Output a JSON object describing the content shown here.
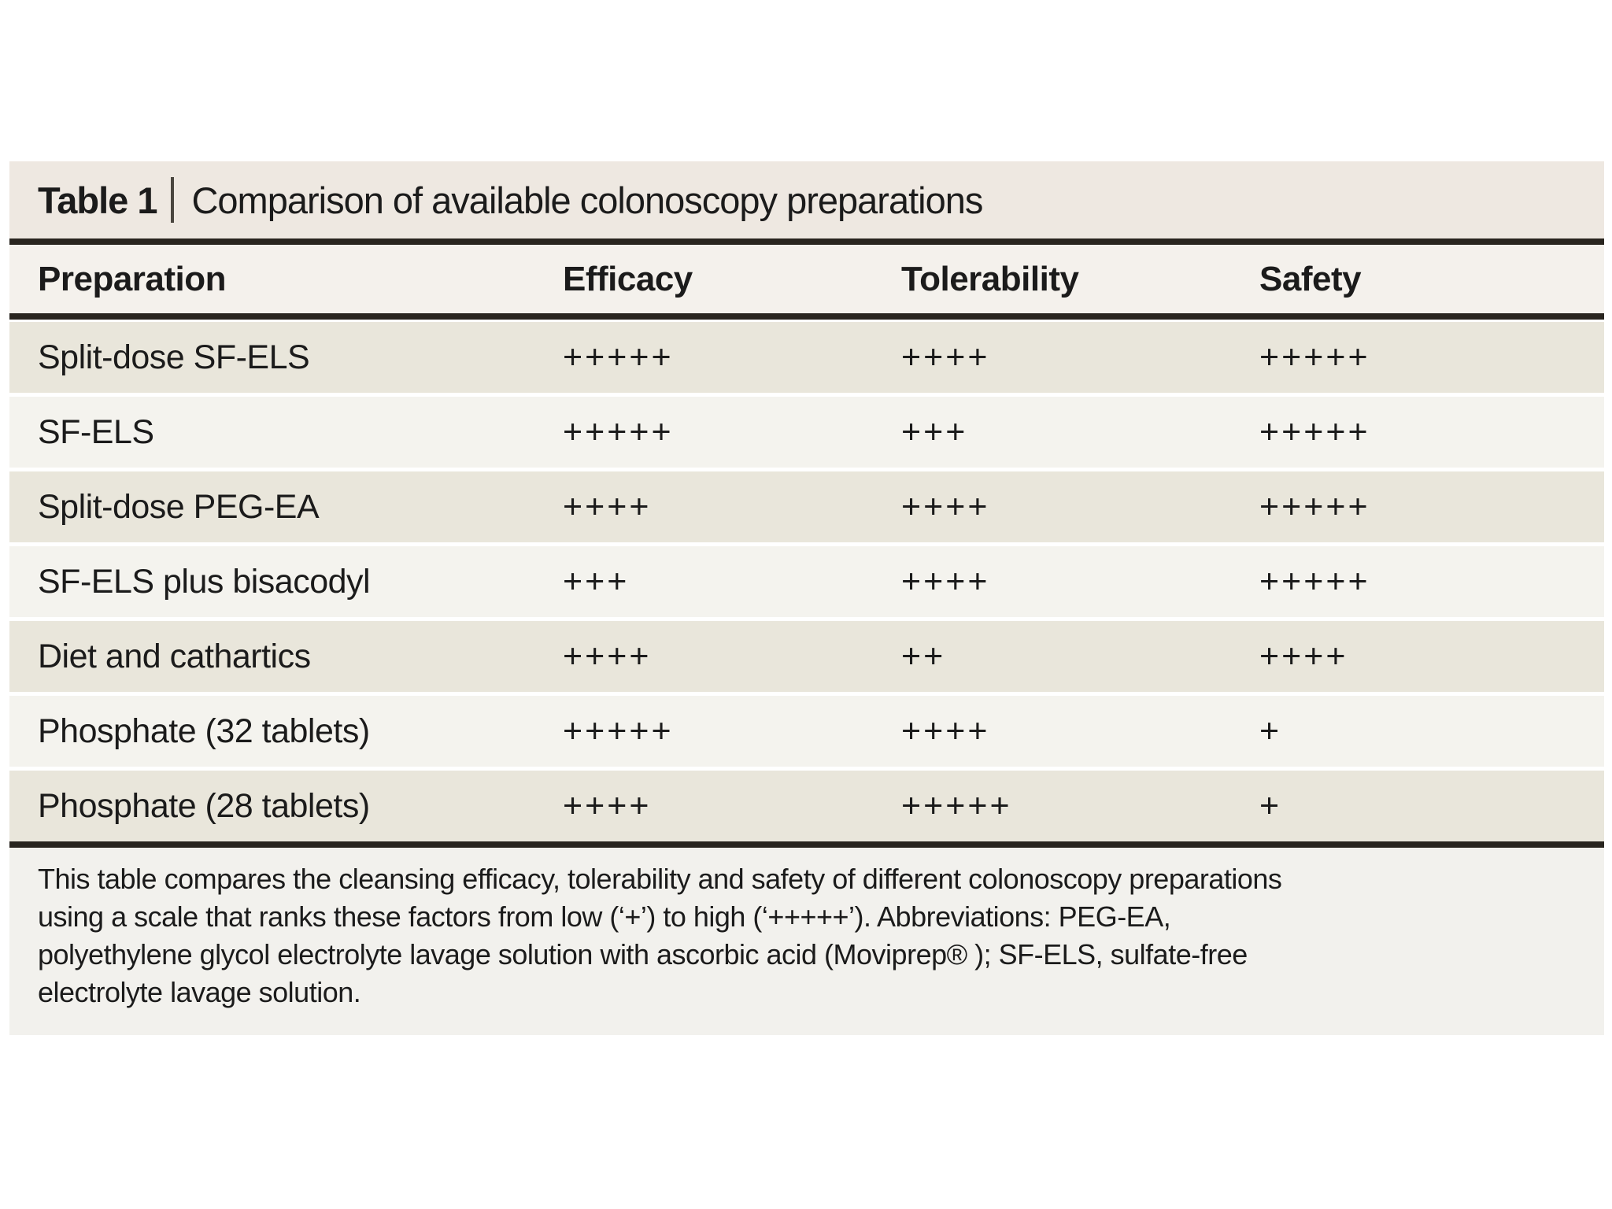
{
  "table": {
    "title": {
      "label": "Table 1",
      "separator": "|",
      "text": "Comparison of available colonoscopy preparations"
    },
    "columns": [
      "Preparation",
      "Efficacy",
      "Tolerability",
      "Safety"
    ],
    "rows": [
      {
        "preparation": "Split-dose SF-ELS",
        "efficacy": "+++++",
        "tolerability": "++++",
        "safety": "+++++"
      },
      {
        "preparation": "SF-ELS",
        "efficacy": "+++++",
        "tolerability": "+++",
        "safety": "+++++"
      },
      {
        "preparation": "Split-dose PEG-EA",
        "efficacy": "++++",
        "tolerability": "++++",
        "safety": "+++++"
      },
      {
        "preparation": "SF-ELS plus bisacodyl",
        "efficacy": "+++",
        "tolerability": "++++",
        "safety": "+++++"
      },
      {
        "preparation": "Diet and cathartics",
        "efficacy": "++++",
        "tolerability": "++",
        "safety": "++++"
      },
      {
        "preparation": "Phosphate (32 tablets)",
        "efficacy": "+++++",
        "tolerability": "++++",
        "safety": "+"
      },
      {
        "preparation": "Phosphate (28 tablets)",
        "efficacy": "++++",
        "tolerability": "+++++",
        "safety": "+"
      }
    ],
    "footnote_lines": [
      "This table compares the cleansing efficacy, tolerability and safety of different colonoscopy preparations",
      "using a scale that ranks these factors from low (‘+’) to high (‘+++++’). Abbreviations: PEG-EA,",
      "polyethylene glycol electrolyte lavage solution with ascorbic acid (Moviprep® ); SF-ELS, sulfate-free",
      "electrolyte lavage solution."
    ]
  },
  "colors": {
    "page_bg": "#ffffff",
    "title_bar_bg": "#eee8e1",
    "header_row_bg": "#f4f1ec",
    "row_odd_bg": "#e9e6db",
    "row_even_bg": "#f4f3ee",
    "rule": "#29251f",
    "footnote_bg": "#f2f1ed",
    "text": "#1b1b1b"
  }
}
